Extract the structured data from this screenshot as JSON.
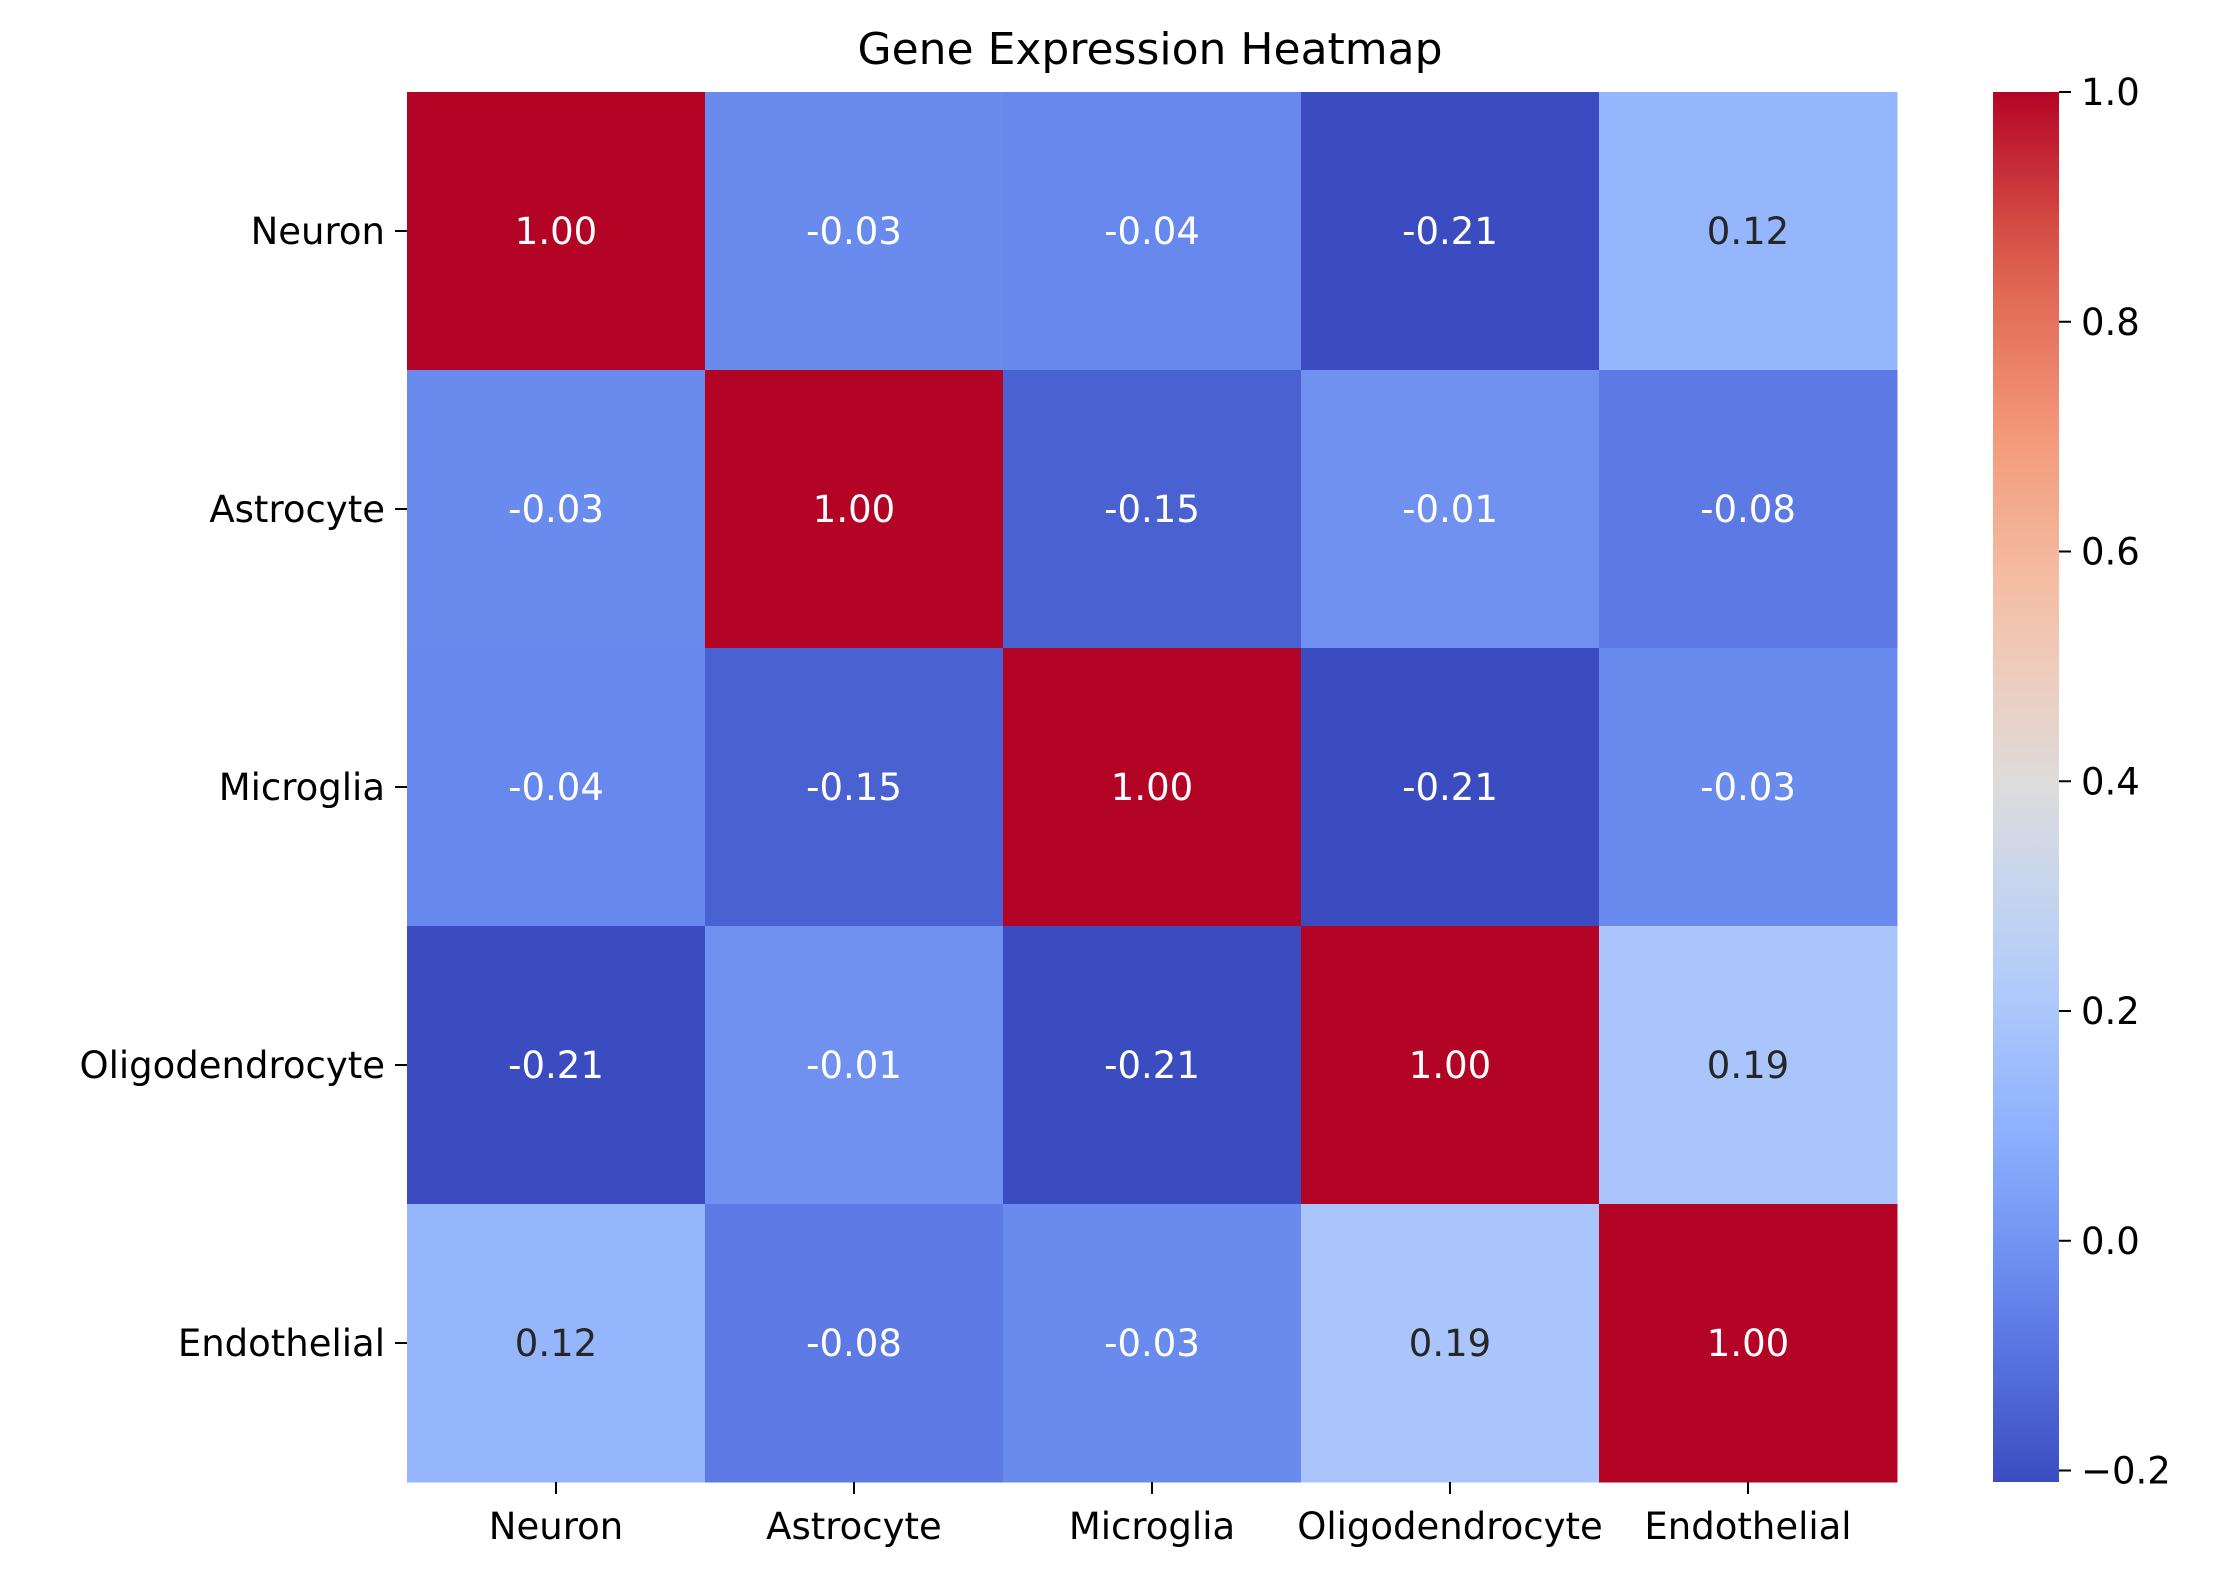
{
  "chart_data": {
    "type": "heatmap",
    "title": "Gene Expression Heatmap",
    "xlabel": "",
    "ylabel": "",
    "x_categories": [
      "Neuron",
      "Astrocyte",
      "Microglia",
      "Oligodendrocyte",
      "Endothelial"
    ],
    "y_categories": [
      "Neuron",
      "Astrocyte",
      "Microglia",
      "Oligodendrocyte",
      "Endothelial"
    ],
    "values": [
      [
        1.0,
        -0.03,
        -0.04,
        -0.21,
        0.12
      ],
      [
        -0.03,
        1.0,
        -0.15,
        -0.01,
        -0.08
      ],
      [
        -0.04,
        -0.15,
        1.0,
        -0.21,
        -0.03
      ],
      [
        -0.21,
        -0.01,
        -0.21,
        1.0,
        0.19
      ],
      [
        0.12,
        -0.08,
        -0.03,
        0.19,
        1.0
      ]
    ],
    "annotation_format": "0.00",
    "colormap": "coolwarm",
    "colorbar": {
      "range": [
        -0.21,
        1.0
      ],
      "ticks": [
        -0.2,
        0.0,
        0.2,
        0.4,
        0.6,
        0.8,
        1.0
      ],
      "tick_labels": [
        "−0.2",
        "0.0",
        "0.2",
        "0.4",
        "0.6",
        "0.8",
        "1.0"
      ],
      "placement": "right"
    },
    "grid": false,
    "colors": {
      "low": "#3b4cc0",
      "mid": "#dddcdc",
      "high": "#b40426",
      "text_light": "#ffffff",
      "text_dark": "#262626",
      "axis": "#000000"
    }
  }
}
